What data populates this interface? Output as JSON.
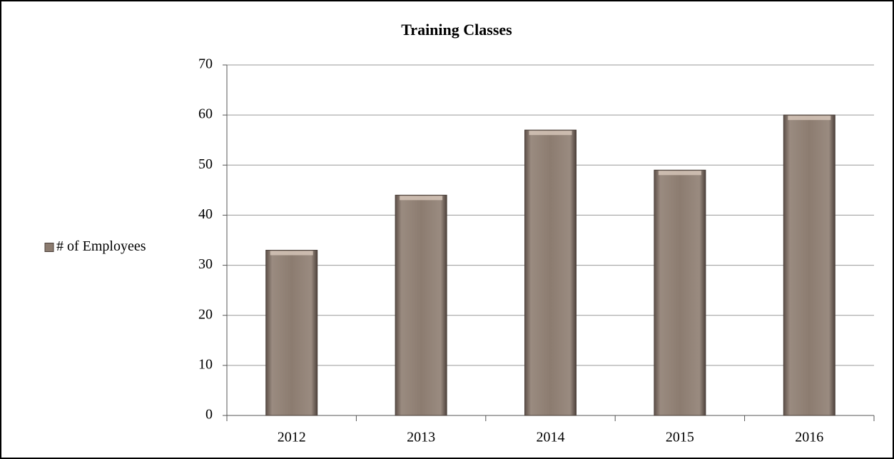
{
  "chart_data": {
    "type": "bar",
    "title": "Training Classes",
    "categories": [
      "2012",
      "2013",
      "2014",
      "2015",
      "2016"
    ],
    "series": [
      {
        "name": "# of Employees",
        "color": "#8c7c70",
        "values": [
          33,
          44,
          57,
          49,
          60
        ]
      }
    ],
    "ylim": [
      0,
      70
    ],
    "yticks": [
      0,
      10,
      20,
      30,
      40,
      50,
      60,
      70
    ],
    "grid": true,
    "legend": "left"
  }
}
